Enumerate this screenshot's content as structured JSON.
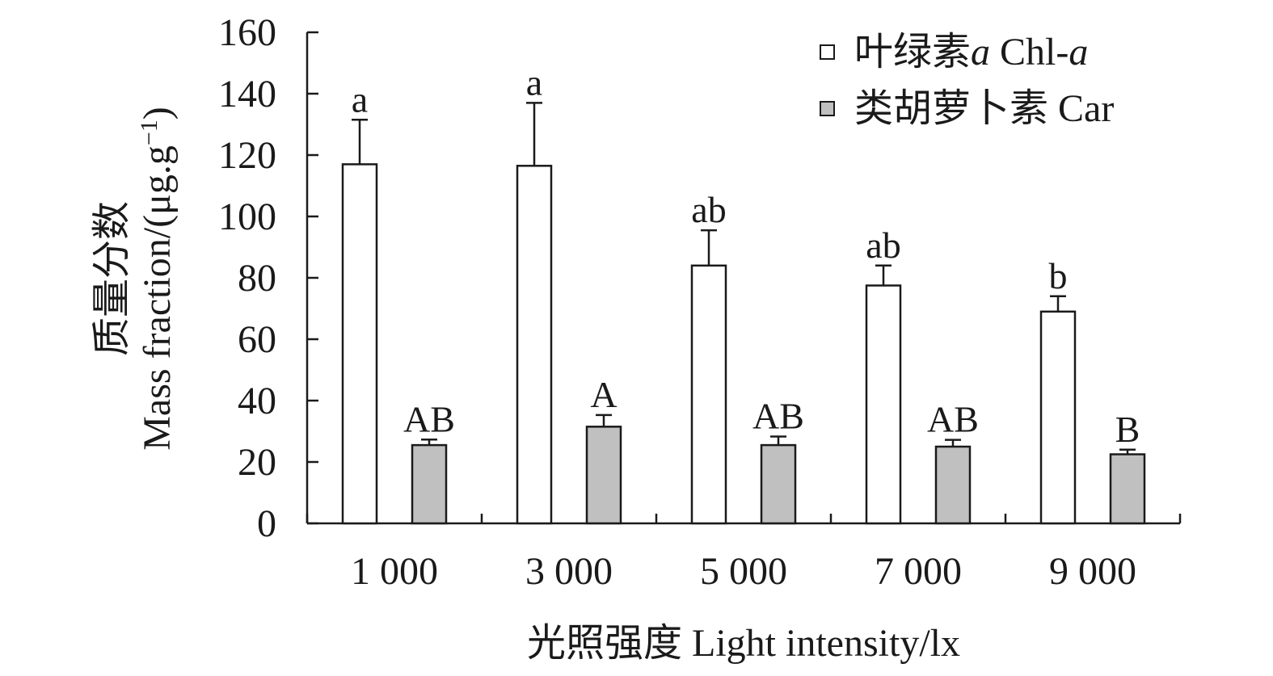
{
  "chart_data": {
    "type": "bar",
    "xlabel": "光照强度 Light intensity/lx",
    "ylabel_cn": "质量分数",
    "ylabel_en": "Mass fraction/(μg.g",
    "ylabel_sup": "−1",
    "ylabel_close": ")",
    "ylim": [
      0,
      160
    ],
    "yticks": [
      0,
      20,
      40,
      60,
      80,
      100,
      120,
      140,
      160
    ],
    "ytick_labels": [
      "0",
      "20",
      "40",
      "60",
      "80",
      "100",
      "120",
      "140",
      "160"
    ],
    "categories": [
      "1 000",
      "3 000",
      "5 000",
      "7 000",
      "9 000"
    ],
    "legend_position": "top-right",
    "grid": false,
    "series": [
      {
        "name_cn": "叶绿素",
        "name_italic": "a",
        "name_en": " Chl-",
        "name_en_italic": "a",
        "fill": "#ffffff",
        "values": [
          117,
          116.5,
          84,
          77.5,
          69
        ],
        "errors": [
          14.5,
          20.5,
          11.5,
          6.5,
          5
        ],
        "sig": [
          "a",
          "a",
          "ab",
          "ab",
          "b"
        ]
      },
      {
        "name_cn": "类胡萝卜素",
        "name_en": " Car",
        "fill": "#c0c0c0",
        "values": [
          25.5,
          31.5,
          25.5,
          25,
          22.5
        ],
        "errors": [
          1.8,
          3.8,
          2.8,
          2.2,
          1.5
        ],
        "sig": [
          "AB",
          "A",
          "AB",
          "AB",
          "B"
        ]
      }
    ]
  }
}
